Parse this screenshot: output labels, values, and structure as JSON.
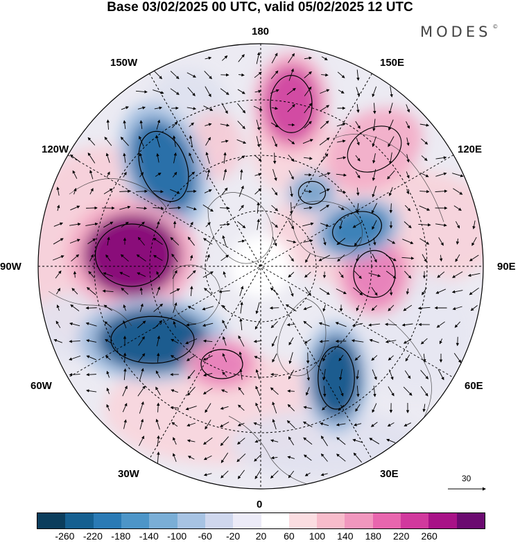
{
  "header": {
    "title": "Base 03/02/2025 00 UTC, valid 05/02/2025 12 UTC",
    "brand": "MODES",
    "brand_mark": "©"
  },
  "map": {
    "projection": "north polar stereographic",
    "longitude_labels": {
      "top": "180",
      "bottom": "0",
      "left": "90W",
      "right": "90E",
      "upper_left_1": "150W",
      "upper_left_2": "120W",
      "upper_right_1": "150E",
      "upper_right_2": "120E",
      "lower_left_1": "60W",
      "lower_left_2": "30W",
      "lower_right_1": "60E",
      "lower_right_2": "30E"
    },
    "reference_vector": {
      "value": "30"
    },
    "anomaly_centers": [
      {
        "sign": "negative",
        "value": -220,
        "color": "#2a6fa8"
      },
      {
        "sign": "positive",
        "value": 240,
        "color": "#8a0a7a"
      },
      {
        "sign": "negative",
        "value": -240,
        "color": "#1f5c8f"
      },
      {
        "sign": "positive",
        "value": 180,
        "color": "#d14ba3"
      },
      {
        "sign": "positive",
        "value": 140,
        "color": "#e883bb"
      },
      {
        "sign": "negative",
        "value": -120,
        "color": "#7fa6cd"
      },
      {
        "sign": "negative",
        "value": -200,
        "color": "#3e82b8"
      },
      {
        "sign": "positive",
        "value": 140,
        "color": "#e883bb"
      },
      {
        "sign": "negative",
        "value": -240,
        "color": "#1f5c8f"
      },
      {
        "sign": "positive",
        "value": 100,
        "color": "#f2b1cb"
      }
    ]
  },
  "colorbar": {
    "colors": [
      "#0b3d5c",
      "#155f90",
      "#2a7ab5",
      "#4d95c8",
      "#7aaed6",
      "#a7c3e3",
      "#cfd7ed",
      "#ecebf7",
      "#ffffff",
      "#fbdde1",
      "#f7bccb",
      "#f197be",
      "#e866ae",
      "#d1399d",
      "#a81287",
      "#6b0a70"
    ],
    "ticks": [
      "-260",
      "-220",
      "-180",
      "-140",
      "-100",
      "-60",
      "-20",
      "20",
      "60",
      "100",
      "140",
      "180",
      "220",
      "260"
    ]
  }
}
